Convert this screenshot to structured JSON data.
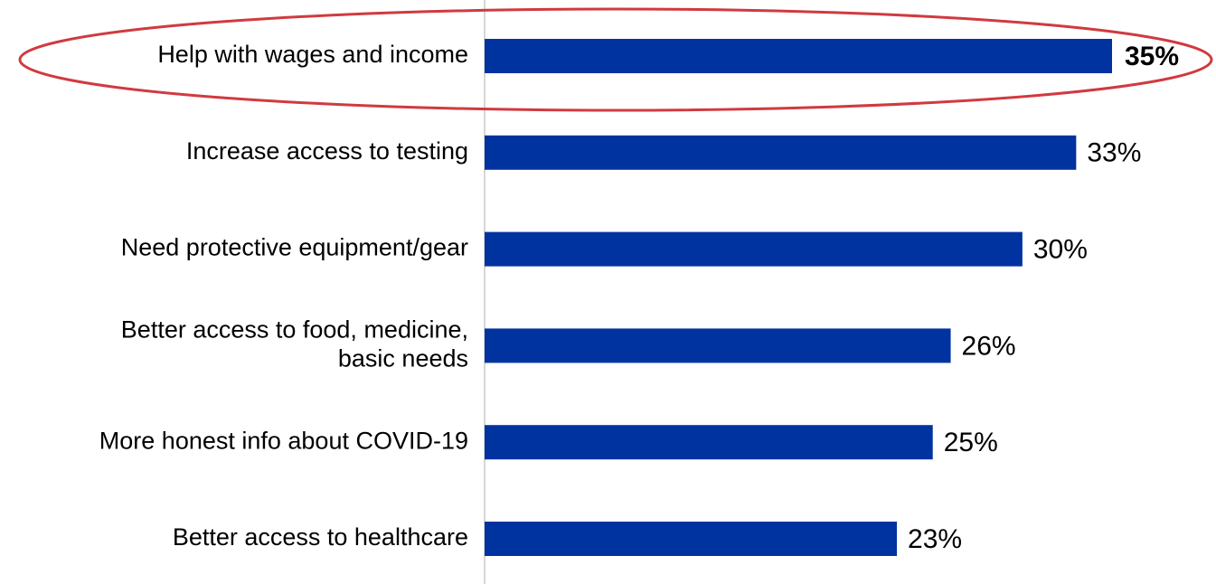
{
  "chart_data": {
    "type": "bar",
    "orientation": "horizontal",
    "categories": [
      "Help with wages and income",
      "Increase access to testing",
      "Need protective equipment/gear",
      "Better access to food, medicine,\nbasic needs",
      "More honest info about COVID-19",
      "Better access to healthcare"
    ],
    "values": [
      35,
      33,
      30,
      26,
      25,
      23
    ],
    "value_labels": [
      "35%",
      "33%",
      "30%",
      "26%",
      "25%",
      "23%"
    ],
    "color": "#0033a0"
  }
}
